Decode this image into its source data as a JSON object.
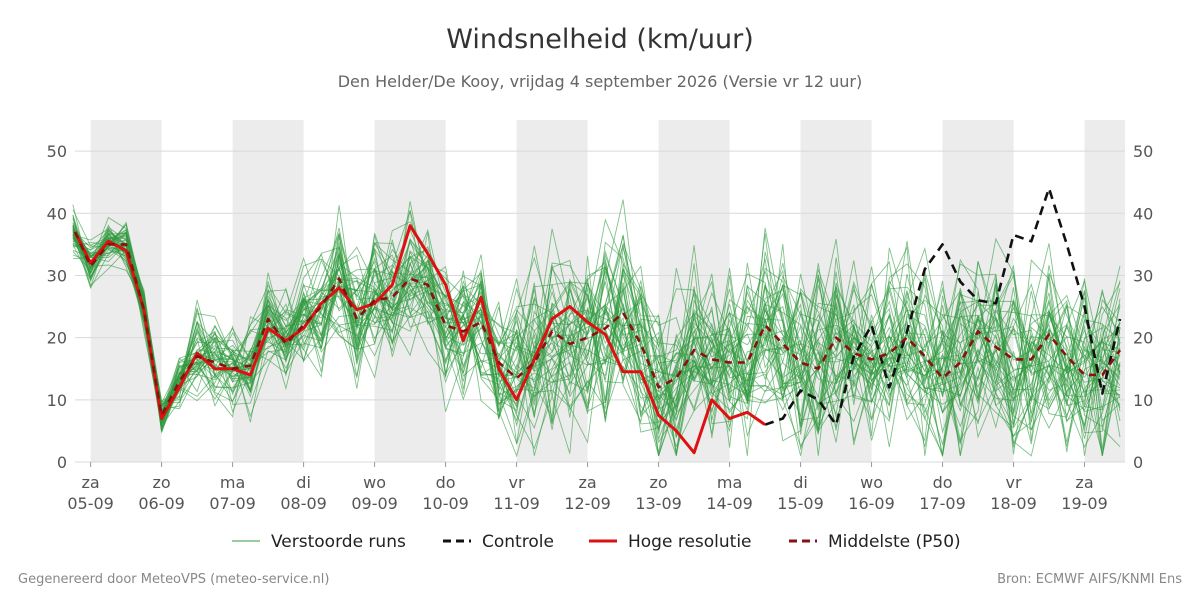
{
  "title": "Windsnelheid (km/uur)",
  "subtitle": "Den Helder/De Kooy, vrijdag  4 september 2026 (Versie vr 12 uur)",
  "footer_left": "Gegenereerd door MeteoVPS (meteo-service.nl)",
  "footer_right": "Bron: ECMWF AIFS/KNMI Ens",
  "chart_data": {
    "type": "line",
    "title": "Windsnelheid (km/uur)",
    "ylim": [
      0,
      55
    ],
    "y_ticks": [
      0,
      10,
      20,
      30,
      40,
      50
    ],
    "xlim": [
      -0.22,
      14.57
    ],
    "x_ticks": [
      {
        "x": 0,
        "day": "za",
        "date": "05-09"
      },
      {
        "x": 1,
        "day": "zo",
        "date": "06-09"
      },
      {
        "x": 2,
        "day": "ma",
        "date": "07-09"
      },
      {
        "x": 3,
        "day": "di",
        "date": "08-09"
      },
      {
        "x": 4,
        "day": "wo",
        "date": "09-09"
      },
      {
        "x": 5,
        "day": "do",
        "date": "10-09"
      },
      {
        "x": 6,
        "day": "vr",
        "date": "11-09"
      },
      {
        "x": 7,
        "day": "za",
        "date": "12-09"
      },
      {
        "x": 8,
        "day": "zo",
        "date": "13-09"
      },
      {
        "x": 9,
        "day": "ma",
        "date": "14-09"
      },
      {
        "x": 10,
        "day": "di",
        "date": "15-09"
      },
      {
        "x": 11,
        "day": "wo",
        "date": "16-09"
      },
      {
        "x": 12,
        "day": "do",
        "date": "17-09"
      },
      {
        "x": 13,
        "day": "vr",
        "date": "18-09"
      },
      {
        "x": 14,
        "day": "za",
        "date": "19-09"
      }
    ],
    "shaded_days": [
      0,
      2,
      4,
      6,
      8,
      10,
      12,
      14
    ],
    "grid": true,
    "legend_position": "bottom",
    "series": [
      {
        "name": "Controle",
        "color": "#111111",
        "style": "dashed",
        "points": [
          [
            9.5,
            6
          ],
          [
            9.75,
            7
          ],
          [
            10.0,
            11.5
          ],
          [
            10.25,
            10
          ],
          [
            10.5,
            6
          ],
          [
            10.75,
            17
          ],
          [
            11.0,
            22
          ],
          [
            11.25,
            12
          ],
          [
            11.5,
            21
          ],
          [
            11.75,
            31
          ],
          [
            12.0,
            35
          ],
          [
            12.25,
            29
          ],
          [
            12.5,
            26
          ],
          [
            12.75,
            25.5
          ],
          [
            13.0,
            36.5
          ],
          [
            13.25,
            35.5
          ],
          [
            13.5,
            44
          ],
          [
            13.75,
            35
          ],
          [
            14.0,
            25
          ],
          [
            14.25,
            11
          ],
          [
            14.5,
            23
          ]
        ]
      },
      {
        "name": "Hoge resolutie",
        "color": "#dd1111",
        "style": "solid",
        "points": [
          [
            -0.25,
            37
          ],
          [
            0.0,
            32
          ],
          [
            0.25,
            35.5
          ],
          [
            0.5,
            34
          ],
          [
            0.75,
            24.5
          ],
          [
            1.0,
            7
          ],
          [
            1.25,
            12
          ],
          [
            1.5,
            17.5
          ],
          [
            1.75,
            15
          ],
          [
            2.0,
            15
          ],
          [
            2.25,
            14
          ],
          [
            2.5,
            21.5
          ],
          [
            2.75,
            19.5
          ],
          [
            3.0,
            21.5
          ],
          [
            3.25,
            25.5
          ],
          [
            3.5,
            28
          ],
          [
            3.75,
            24.5
          ],
          [
            4.0,
            25.5
          ],
          [
            4.25,
            28.5
          ],
          [
            4.5,
            38
          ],
          [
            4.75,
            33.5
          ],
          [
            5.0,
            28.5
          ],
          [
            5.25,
            19.5
          ],
          [
            5.5,
            26.5
          ],
          [
            5.75,
            15
          ],
          [
            6.0,
            10
          ],
          [
            6.25,
            16.5
          ],
          [
            6.5,
            23
          ],
          [
            6.75,
            25
          ],
          [
            7.0,
            22.5
          ],
          [
            7.25,
            20.5
          ],
          [
            7.5,
            14.5
          ],
          [
            7.75,
            14.5
          ],
          [
            8.0,
            7.5
          ],
          [
            8.25,
            5
          ],
          [
            8.5,
            1.5
          ],
          [
            8.75,
            10
          ],
          [
            9.0,
            7
          ],
          [
            9.25,
            8
          ],
          [
            9.5,
            6
          ]
        ]
      },
      {
        "name": "Middelste (P50)",
        "color": "#8b1010",
        "style": "dashed",
        "points": [
          [
            -0.25,
            37
          ],
          [
            0.0,
            31.5
          ],
          [
            0.25,
            35
          ],
          [
            0.5,
            35
          ],
          [
            0.75,
            24.5
          ],
          [
            1.0,
            7.5
          ],
          [
            1.25,
            13
          ],
          [
            1.5,
            17
          ],
          [
            1.75,
            16
          ],
          [
            2.0,
            15
          ],
          [
            2.25,
            15.5
          ],
          [
            2.5,
            23
          ],
          [
            2.75,
            19
          ],
          [
            3.0,
            22
          ],
          [
            3.25,
            25
          ],
          [
            3.5,
            29.5
          ],
          [
            3.75,
            23
          ],
          [
            4.0,
            26
          ],
          [
            4.25,
            26.5
          ],
          [
            4.5,
            29.5
          ],
          [
            4.75,
            28.5
          ],
          [
            5.0,
            22
          ],
          [
            5.25,
            21
          ],
          [
            5.5,
            22.5
          ],
          [
            5.75,
            16
          ],
          [
            6.0,
            13.5
          ],
          [
            6.25,
            16
          ],
          [
            6.5,
            21
          ],
          [
            6.75,
            19
          ],
          [
            7.0,
            20
          ],
          [
            7.25,
            21.5
          ],
          [
            7.5,
            24
          ],
          [
            7.75,
            19
          ],
          [
            8.0,
            12
          ],
          [
            8.25,
            13.5
          ],
          [
            8.5,
            18
          ],
          [
            8.75,
            16.5
          ],
          [
            9.0,
            16
          ],
          [
            9.25,
            16
          ],
          [
            9.5,
            22
          ],
          [
            9.75,
            19
          ],
          [
            10.0,
            16
          ],
          [
            10.25,
            15
          ],
          [
            10.5,
            20
          ],
          [
            10.75,
            17.5
          ],
          [
            11.0,
            16.5
          ],
          [
            11.25,
            17.5
          ],
          [
            11.5,
            20
          ],
          [
            11.75,
            17
          ],
          [
            12.0,
            13.5
          ],
          [
            12.25,
            16
          ],
          [
            12.5,
            21
          ],
          [
            12.75,
            18.5
          ],
          [
            13.0,
            16.5
          ],
          [
            13.25,
            16.5
          ],
          [
            13.5,
            20.5
          ],
          [
            13.75,
            17
          ],
          [
            14.0,
            14
          ],
          [
            14.25,
            14
          ],
          [
            14.5,
            18
          ]
        ]
      }
    ],
    "ensemble": {
      "name": "Verstoorde runs",
      "color": "#2e9a3e",
      "members": 50,
      "start_x": -0.25,
      "step_x": 0.25
    }
  },
  "legend": [
    {
      "label": "Verstoorde runs",
      "color": "#2e9a3e",
      "style": "thin"
    },
    {
      "label": "Controle",
      "color": "#111111",
      "style": "dashed"
    },
    {
      "label": "Hoge resolutie",
      "color": "#dd1111",
      "style": "solid"
    },
    {
      "label": "Middelste (P50)",
      "color": "#8b1010",
      "style": "dashed"
    }
  ]
}
